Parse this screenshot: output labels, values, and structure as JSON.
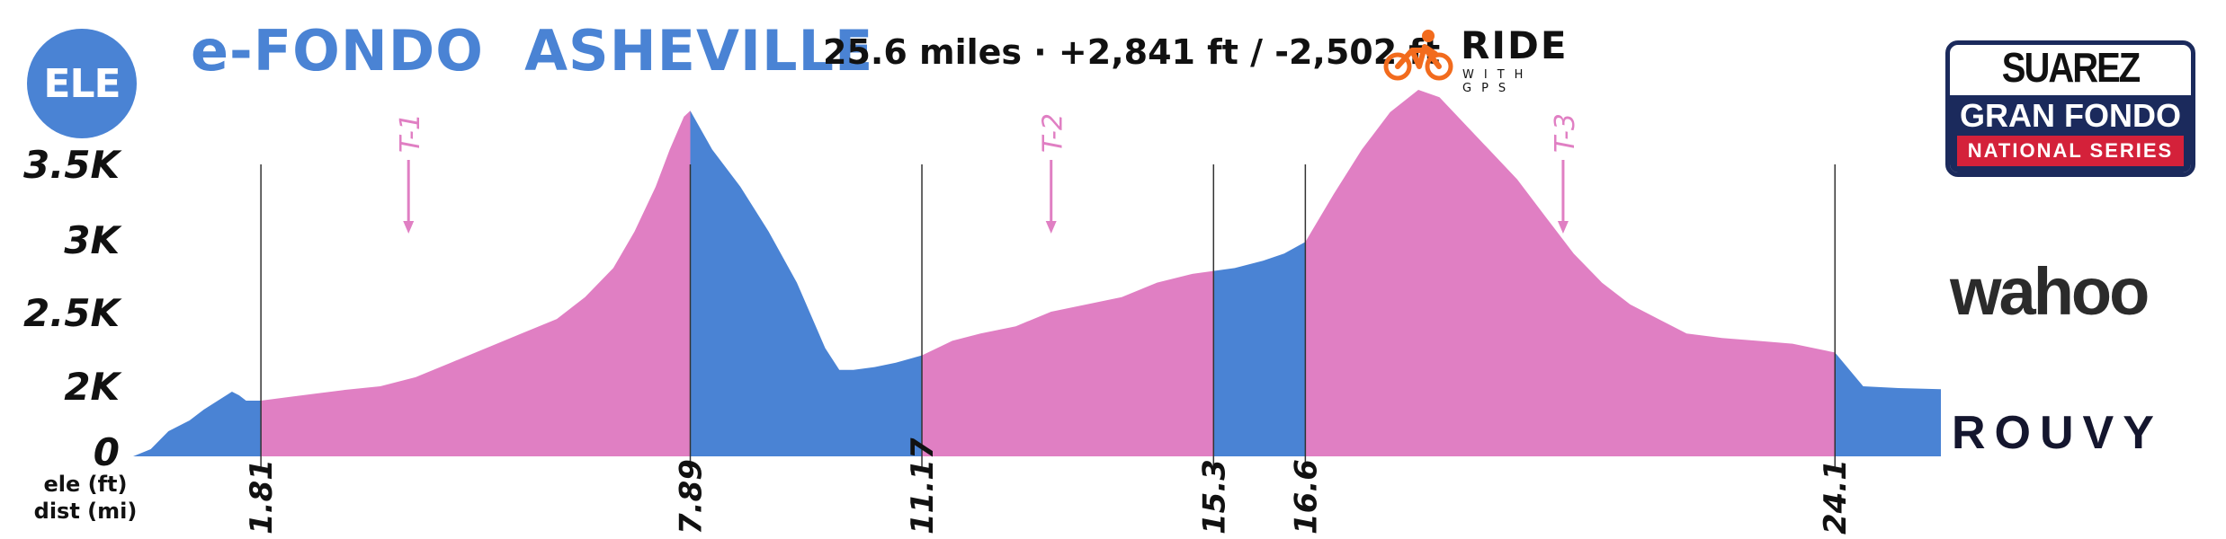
{
  "header": {
    "badge_label": "ELE",
    "title": "e-FONDO  ASHEVILLE",
    "stats": "25.6 miles · +2,841 ft / -2,502 ft"
  },
  "logos": {
    "rwgps_title": "RIDE",
    "rwgps_sub": "WITH GPS",
    "suarez_top": "SUAREZ",
    "suarez_mid": "GRAN FONDO",
    "suarez_bottom": "NATIONAL SERIES",
    "wahoo": "wahoo",
    "rouvy": "ROUVY"
  },
  "colors": {
    "blue": "#4a83d4",
    "pink": "#e07fc3",
    "text": "#111111",
    "rwgps_orange": "#f26b1d",
    "suarez_navy": "#1b2a5c",
    "suarez_red": "#d4213a"
  },
  "chart_data": {
    "type": "area",
    "xlabel": "dist (mi)",
    "ylabel": "ele (ft)",
    "x_range": [
      0,
      25.6
    ],
    "y_ticks": [
      "3.5K",
      "3K",
      "2.5K",
      "2K",
      "0"
    ],
    "grid": false,
    "segment_boundaries": [
      1.81,
      7.89,
      11.17,
      15.3,
      16.6,
      24.1
    ],
    "segment_colors": [
      "blue",
      "pink",
      "blue",
      "pink",
      "blue",
      "pink",
      "blue"
    ],
    "profile": {
      "x": [
        0,
        0.25,
        0.5,
        0.8,
        1.0,
        1.2,
        1.4,
        1.5,
        1.6,
        1.81,
        2.2,
        2.6,
        3.0,
        3.5,
        4.0,
        4.5,
        5.0,
        5.5,
        6.0,
        6.4,
        6.8,
        7.1,
        7.4,
        7.6,
        7.8,
        7.89,
        8.2,
        8.6,
        9.0,
        9.4,
        9.8,
        10.0,
        10.2,
        10.5,
        10.8,
        11.17,
        11.6,
        12.0,
        12.5,
        13.0,
        13.5,
        14.0,
        14.5,
        15.0,
        15.3,
        15.6,
        16.0,
        16.3,
        16.6,
        17.0,
        17.4,
        17.8,
        18.2,
        18.5,
        18.8,
        19.2,
        19.6,
        20.0,
        20.4,
        20.8,
        21.2,
        21.6,
        22.0,
        22.5,
        23.0,
        23.5,
        23.8,
        24.1,
        24.5,
        25.0,
        25.6
      ],
      "y": [
        0,
        200,
        700,
        1000,
        1300,
        1550,
        1800,
        1700,
        1550,
        1550,
        1650,
        1750,
        1850,
        1950,
        2050,
        2150,
        2250,
        2350,
        2450,
        2600,
        2800,
        3050,
        3350,
        3600,
        3820,
        3860,
        3600,
        3350,
        3050,
        2700,
        2250,
        2100,
        2100,
        2120,
        2150,
        2200,
        2300,
        2350,
        2400,
        2500,
        2550,
        2600,
        2700,
        2760,
        2780,
        2800,
        2850,
        2900,
        2980,
        3300,
        3600,
        3850,
        4000,
        3950,
        3800,
        3600,
        3400,
        3150,
        2900,
        2700,
        2550,
        2450,
        2350,
        2320,
        2300,
        2280,
        2250,
        2220,
        1950,
        1900,
        1870
      ]
    },
    "turn_markers": [
      {
        "label": "T-1",
        "x": 3.9
      },
      {
        "label": "T-2",
        "x": 13.0
      },
      {
        "label": "T-3",
        "x": 20.25
      }
    ]
  }
}
